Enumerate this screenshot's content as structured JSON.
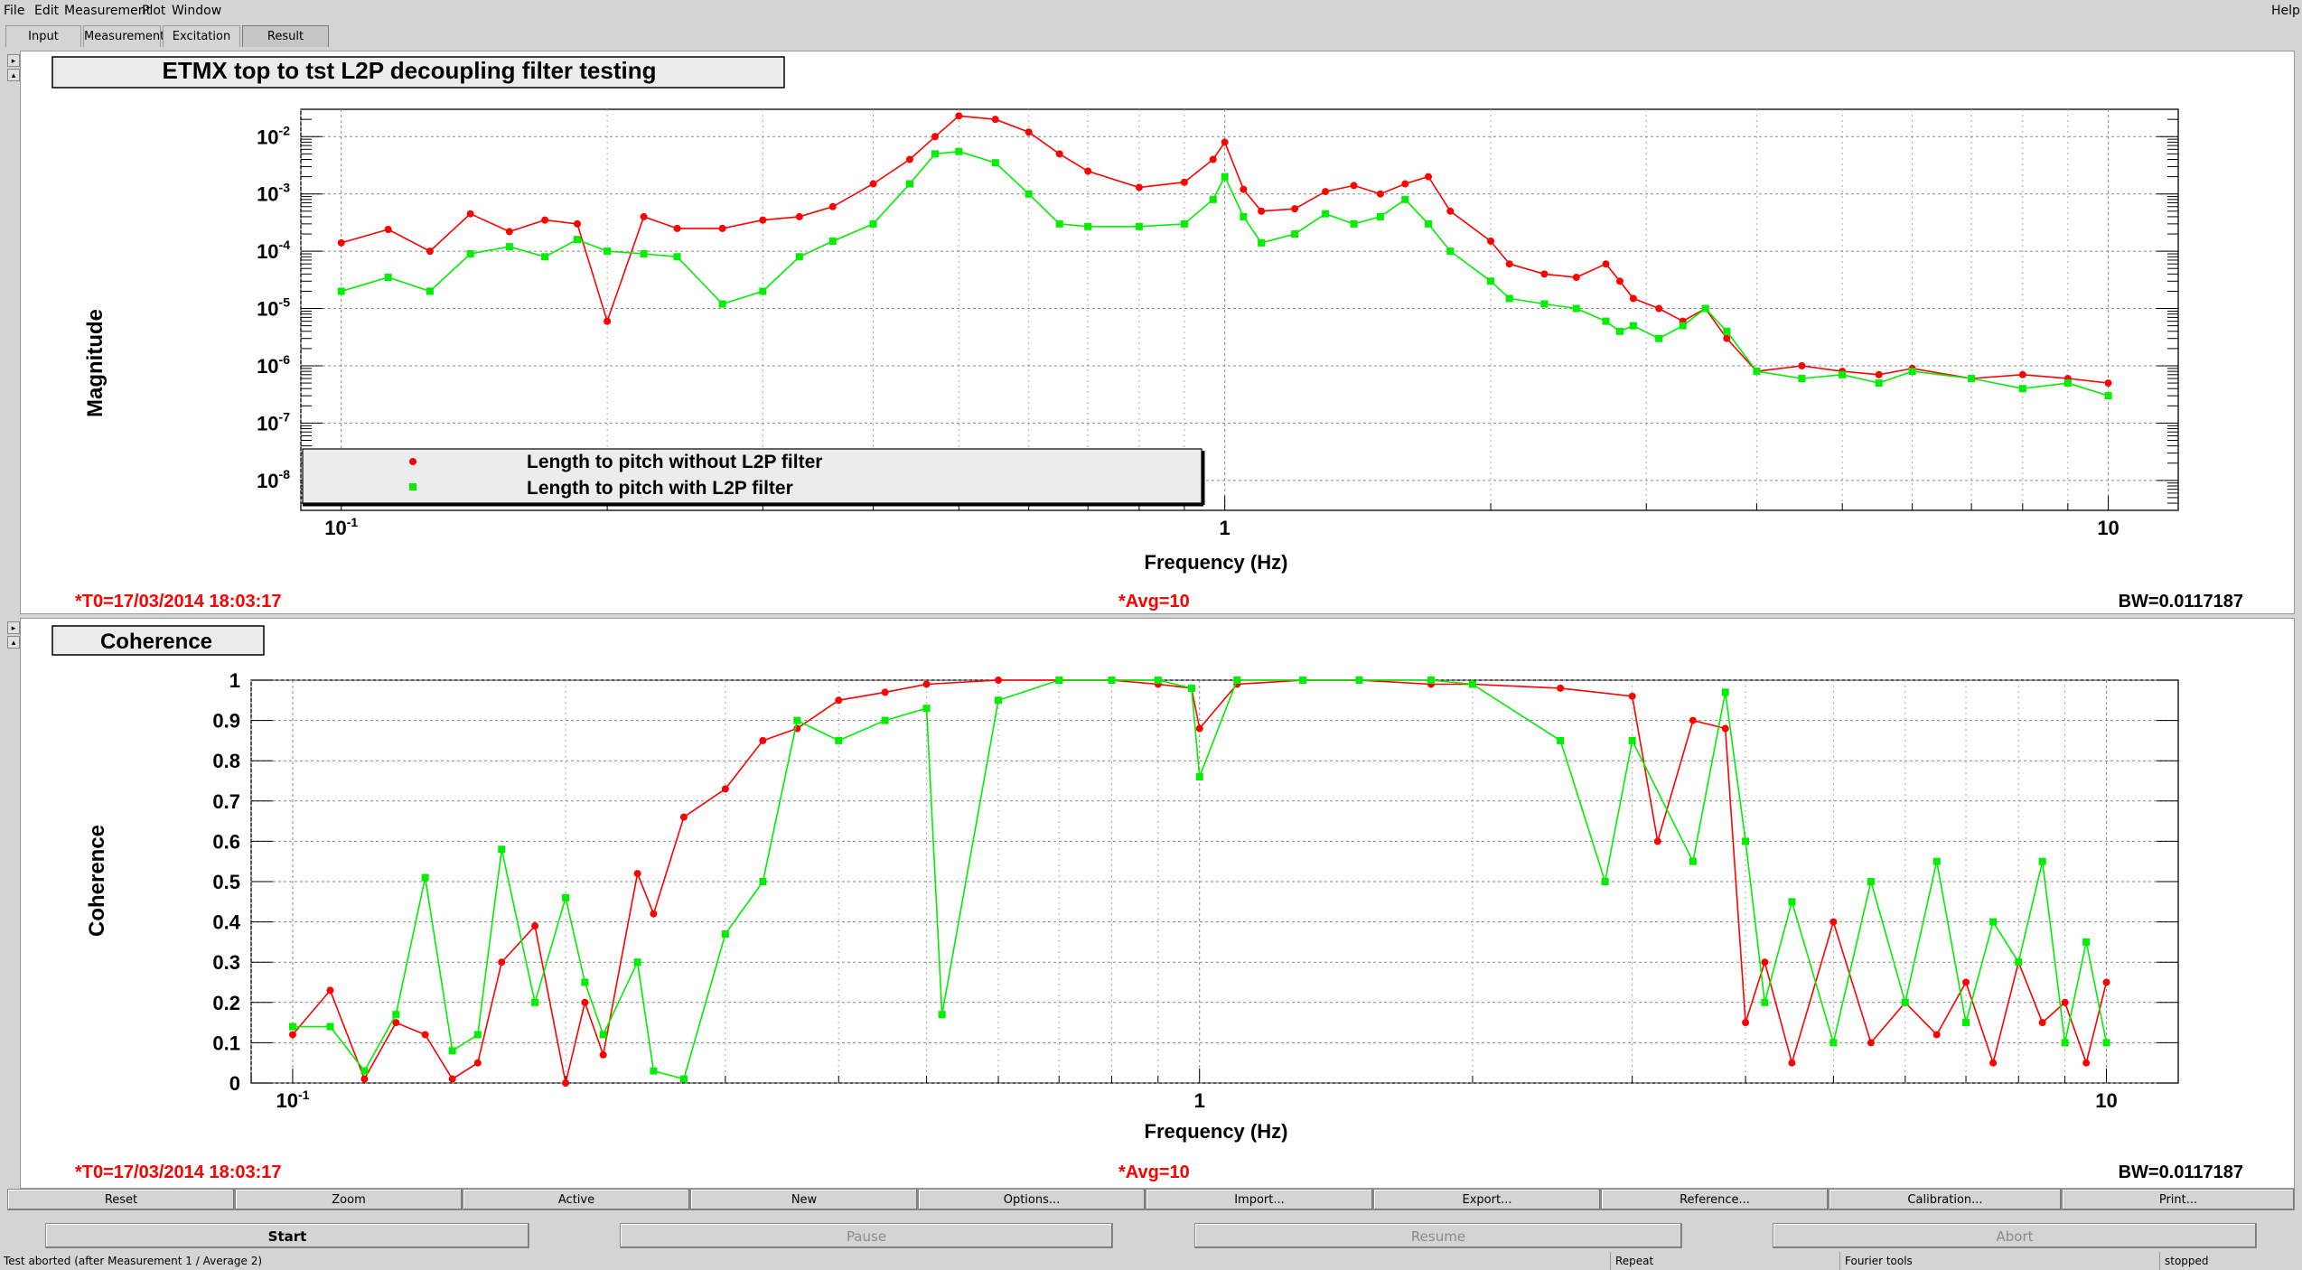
{
  "menu": {
    "file": "File",
    "edit": "Edit",
    "measurement": "Measurement",
    "plot": "Plot",
    "window": "Window",
    "help": "Help"
  },
  "tabs": [
    "Input",
    "Measurement",
    "Excitation",
    "Result"
  ],
  "plot1": {
    "title": "ETMX top to tst L2P decoupling filter testing",
    "ylabel": "Magnitude",
    "xlabel": "Frequency (Hz)",
    "t0": "*T0=17/03/2014 18:03:17",
    "avg": "*Avg=10",
    "bw": "BW=0.0117187",
    "legend": [
      "Length to pitch without L2P filter",
      "Length to pitch with L2P filter"
    ]
  },
  "plot2": {
    "title": "Coherence",
    "ylabel": "Coherence",
    "xlabel": "Frequency (Hz)",
    "t0": "*T0=17/03/2014 18:03:17",
    "avg": "*Avg=10",
    "bw": "BW=0.0117187"
  },
  "colors": {
    "series1": "#ff0000",
    "series2": "#00ee00",
    "label_red": "#ff0000"
  },
  "chart_data": [
    {
      "type": "line",
      "title": "ETMX top to tst L2P decoupling filter testing",
      "xlabel": "Frequency (Hz)",
      "ylabel": "Magnitude",
      "xscale": "log",
      "yscale": "log",
      "xlim": [
        0.09,
        12
      ],
      "ylim": [
        3e-09,
        0.03
      ],
      "xticks": [
        "10^-1",
        "1",
        "10"
      ],
      "yticks": [
        "10^-8",
        "10^-7",
        "10^-6",
        "10^-5",
        "10^-4",
        "10^-3",
        "10^-2"
      ],
      "grid": true,
      "legend_position": "bottom-left",
      "series": [
        {
          "name": "Length to pitch without L2P filter",
          "color": "#ff0000",
          "marker": "circle",
          "x": [
            0.1,
            0.113,
            0.126,
            0.14,
            0.155,
            0.17,
            0.185,
            0.2,
            0.22,
            0.24,
            0.27,
            0.3,
            0.33,
            0.36,
            0.4,
            0.44,
            0.47,
            0.5,
            0.55,
            0.6,
            0.65,
            0.7,
            0.8,
            0.9,
            0.97,
            1.0,
            1.05,
            1.1,
            1.2,
            1.3,
            1.4,
            1.5,
            1.6,
            1.7,
            1.8,
            2.0,
            2.1,
            2.3,
            2.5,
            2.7,
            2.8,
            2.9,
            3.1,
            3.3,
            3.5,
            3.7,
            4.0,
            4.5,
            5,
            5.5,
            6,
            7,
            8,
            9,
            10
          ],
          "y": [
            0.00014,
            0.00024,
            0.0001,
            0.00045,
            0.00022,
            0.00035,
            0.0003,
            6e-06,
            0.0004,
            0.00025,
            0.00025,
            0.00035,
            0.0004,
            0.0006,
            0.0015,
            0.004,
            0.01,
            0.023,
            0.02,
            0.012,
            0.005,
            0.0025,
            0.0013,
            0.0016,
            0.004,
            0.008,
            0.0012,
            0.0005,
            0.00055,
            0.0011,
            0.0014,
            0.001,
            0.0015,
            0.002,
            0.0005,
            0.00015,
            6e-05,
            4e-05,
            3.5e-05,
            6e-05,
            3e-05,
            1.5e-05,
            1e-05,
            6e-06,
            1e-05,
            3e-06,
            8e-07,
            1e-06,
            8e-07,
            7e-07,
            9e-07,
            6e-07,
            7e-07,
            6e-07,
            5e-07
          ]
        },
        {
          "name": "Length to pitch with L2P filter",
          "color": "#00ee00",
          "marker": "square",
          "x": [
            0.1,
            0.113,
            0.126,
            0.14,
            0.155,
            0.17,
            0.185,
            0.2,
            0.22,
            0.24,
            0.27,
            0.3,
            0.33,
            0.36,
            0.4,
            0.44,
            0.47,
            0.5,
            0.55,
            0.6,
            0.65,
            0.7,
            0.8,
            0.9,
            0.97,
            1.0,
            1.05,
            1.1,
            1.2,
            1.3,
            1.4,
            1.5,
            1.6,
            1.7,
            1.8,
            2.0,
            2.1,
            2.3,
            2.5,
            2.7,
            2.8,
            2.9,
            3.1,
            3.3,
            3.5,
            3.7,
            4.0,
            4.5,
            5,
            5.5,
            6,
            7,
            8,
            9,
            10
          ],
          "y": [
            2e-05,
            3.5e-05,
            2e-05,
            9e-05,
            0.00012,
            8e-05,
            0.00016,
            0.0001,
            9e-05,
            8e-05,
            1.2e-05,
            2e-05,
            8e-05,
            0.00015,
            0.0003,
            0.0015,
            0.005,
            0.0055,
            0.0035,
            0.001,
            0.0003,
            0.00027,
            0.00027,
            0.0003,
            0.0008,
            0.002,
            0.0004,
            0.00014,
            0.0002,
            0.00045,
            0.0003,
            0.0004,
            0.0008,
            0.0003,
            0.0001,
            3e-05,
            1.5e-05,
            1.2e-05,
            1e-05,
            6e-06,
            4e-06,
            5e-06,
            3e-06,
            5e-06,
            1e-05,
            4e-06,
            8e-07,
            6e-07,
            7e-07,
            5e-07,
            8e-07,
            6e-07,
            4e-07,
            5e-07,
            3e-07
          ]
        }
      ]
    },
    {
      "type": "line",
      "title": "Coherence",
      "xlabel": "Frequency (Hz)",
      "ylabel": "Coherence",
      "xscale": "log",
      "xlim": [
        0.09,
        12
      ],
      "ylim": [
        0,
        1
      ],
      "yticks": [
        0,
        0.1,
        0.2,
        0.3,
        0.4,
        0.5,
        0.6,
        0.7,
        0.8,
        0.9,
        1
      ],
      "grid": true,
      "series": [
        {
          "name": "Length to pitch without L2P filter",
          "color": "#ff0000",
          "marker": "circle",
          "x": [
            0.1,
            0.11,
            0.12,
            0.13,
            0.14,
            0.15,
            0.16,
            0.17,
            0.185,
            0.2,
            0.21,
            0.22,
            0.24,
            0.25,
            0.27,
            0.3,
            0.33,
            0.36,
            0.4,
            0.45,
            0.5,
            0.6,
            0.7,
            0.8,
            0.9,
            0.98,
            1.0,
            1.1,
            1.3,
            1.5,
            1.8,
            2.0,
            2.5,
            3.0,
            3.2,
            3.5,
            3.8,
            4.0,
            4.2,
            4.5,
            5,
            5.5,
            6,
            6.5,
            7,
            7.5,
            8,
            8.5,
            9,
            9.5,
            10
          ],
          "y": [
            0.12,
            0.23,
            0.01,
            0.15,
            0.12,
            0.01,
            0.05,
            0.3,
            0.39,
            0.0,
            0.2,
            0.07,
            0.52,
            0.42,
            0.66,
            0.73,
            0.85,
            0.88,
            0.95,
            0.97,
            0.99,
            1.0,
            1.0,
            1.0,
            0.99,
            0.98,
            0.88,
            0.99,
            1.0,
            1.0,
            0.99,
            0.99,
            0.98,
            0.96,
            0.6,
            0.9,
            0.88,
            0.15,
            0.3,
            0.05,
            0.4,
            0.1,
            0.2,
            0.12,
            0.25,
            0.05,
            0.3,
            0.15,
            0.2,
            0.05,
            0.25
          ]
        },
        {
          "name": "Length to pitch with L2P filter",
          "color": "#00ee00",
          "marker": "square",
          "x": [
            0.1,
            0.11,
            0.12,
            0.13,
            0.14,
            0.15,
            0.16,
            0.17,
            0.185,
            0.2,
            0.21,
            0.22,
            0.24,
            0.25,
            0.27,
            0.3,
            0.33,
            0.36,
            0.4,
            0.45,
            0.5,
            0.52,
            0.6,
            0.7,
            0.8,
            0.9,
            0.98,
            1.0,
            1.1,
            1.3,
            1.5,
            1.8,
            2.0,
            2.5,
            2.8,
            3.0,
            3.5,
            3.8,
            4.0,
            4.2,
            4.5,
            5,
            5.5,
            6,
            6.5,
            7,
            7.5,
            8,
            8.5,
            9,
            9.5,
            10
          ],
          "y": [
            0.14,
            0.14,
            0.03,
            0.17,
            0.51,
            0.08,
            0.12,
            0.58,
            0.2,
            0.46,
            0.25,
            0.12,
            0.3,
            0.03,
            0.01,
            0.37,
            0.5,
            0.9,
            0.85,
            0.9,
            0.93,
            0.17,
            0.95,
            1.0,
            1.0,
            1.0,
            0.98,
            0.76,
            1.0,
            1.0,
            1.0,
            1.0,
            0.99,
            0.85,
            0.5,
            0.85,
            0.55,
            0.97,
            0.6,
            0.2,
            0.45,
            0.1,
            0.5,
            0.2,
            0.55,
            0.15,
            0.4,
            0.3,
            0.55,
            0.1,
            0.35,
            0.1
          ]
        }
      ]
    }
  ],
  "buttons_top": [
    "Reset",
    "Zoom",
    "Active",
    "New",
    "Options...",
    "Import...",
    "Export...",
    "Reference...",
    "Calibration...",
    "Print..."
  ],
  "buttons_bottom": [
    "Start",
    "Pause",
    "Resume",
    "Abort"
  ],
  "statusbar": {
    "message": "Test aborted (after Measurement 1 / Average 2)",
    "repeat": "Repeat",
    "tools": "Fourier tools",
    "state": "stopped"
  }
}
